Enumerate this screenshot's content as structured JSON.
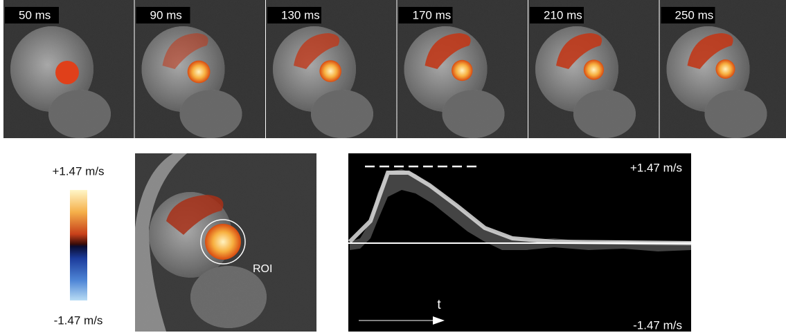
{
  "frames": [
    {
      "label": "50 ms"
    },
    {
      "label": "90 ms"
    },
    {
      "label": "130 ms"
    },
    {
      "label": "170 ms"
    },
    {
      "label": "210 ms"
    },
    {
      "label": "250 ms"
    }
  ],
  "colorbar": {
    "max_label": "+1.47 m/s",
    "min_label": "-1.47 m/s"
  },
  "roi_image": {
    "roi_label": "ROI"
  },
  "velocity_plot": {
    "max_label": "+1.47 m/s",
    "min_label": "-1.47 m/s",
    "time_label": "t"
  }
}
